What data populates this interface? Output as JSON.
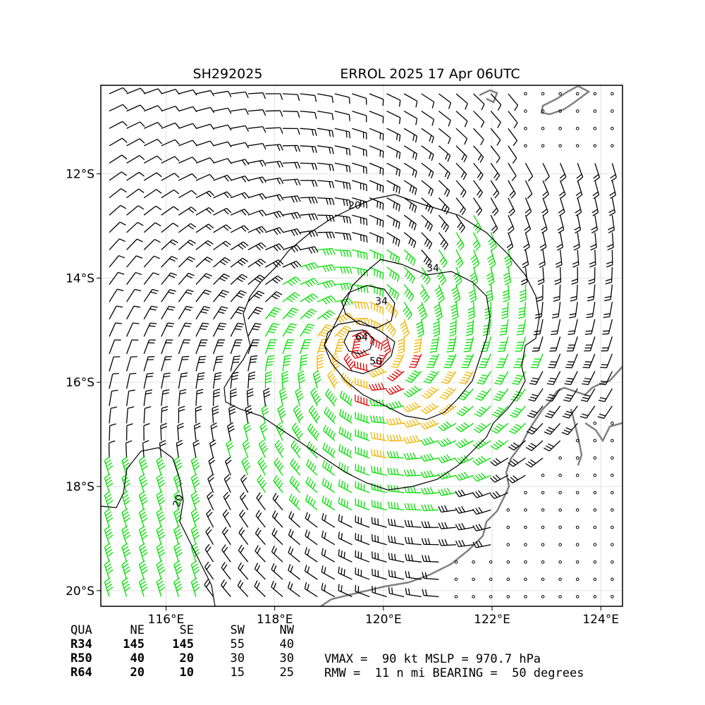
{
  "storm_id": "SH292025",
  "title": "ERROL 2025 17 Apr 06UTC",
  "chart_data": {
    "type": "wind-barb-map",
    "x_ticks": [
      "116°E",
      "118°E",
      "120°E",
      "122°E",
      "124°E"
    ],
    "y_ticks": [
      "12°S",
      "14°S",
      "16°S",
      "18°S",
      "20°S"
    ],
    "x_range_deg": [
      114.8,
      124.4
    ],
    "y_range_deg": [
      -20.3,
      -10.3
    ],
    "grid": true,
    "center": {
      "lon": 119.7,
      "lat": -15.4
    },
    "contour_levels": [
      {
        "label": "20",
        "color": "#000000"
      },
      {
        "label": "34",
        "color": "#000000"
      },
      {
        "label": "50",
        "color": "#000000"
      },
      {
        "label": "64",
        "color": "#000000"
      },
      {
        "label": "20",
        "color": "#000000"
      }
    ],
    "barb_colors": {
      "below34": "#000000",
      "r34": "#00e000",
      "r50": "#f0b400",
      "r64": "#e00000",
      "land": "#808080"
    },
    "wind_radii_table": {
      "header": [
        "QUA",
        "NE",
        "SE",
        "SW",
        "NW"
      ],
      "rows": [
        [
          "R34",
          "145",
          "145",
          "55",
          "40"
        ],
        [
          "R50",
          "40",
          "20",
          "30",
          "30"
        ],
        [
          "R64",
          "20",
          "10",
          "15",
          "25"
        ]
      ]
    },
    "summary_line1": "VMAX =  90 kt MSLP = 970.7 hPa",
    "summary_line2": "RMW =  11 n mi BEARING =  50 degrees"
  }
}
